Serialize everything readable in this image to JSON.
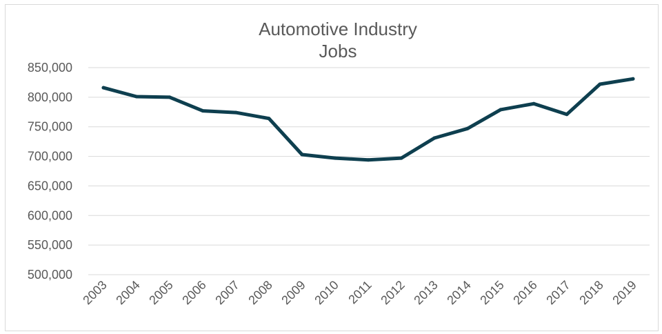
{
  "chart_data": {
    "type": "line",
    "title": [
      "Automotive Industry",
      "Jobs"
    ],
    "xlabel": "",
    "ylabel": "",
    "x": [
      "2003",
      "2004",
      "2005",
      "2006",
      "2007",
      "2008",
      "2009",
      "2010",
      "2011",
      "2012",
      "2013",
      "2014",
      "2015",
      "2016",
      "2017",
      "2018",
      "2019"
    ],
    "series": [
      {
        "values": [
          816000,
          801000,
          800000,
          777000,
          774000,
          764000,
          703000,
          697000,
          694000,
          697000,
          731000,
          747000,
          779000,
          789000,
          771000,
          822000,
          831000
        ]
      }
    ],
    "ylim": [
      500000,
      850000
    ],
    "yticks": [
      "500,000",
      "550,000",
      "600,000",
      "650,000",
      "700,000",
      "750,000",
      "800,000",
      "850,000"
    ],
    "ytick_values": [
      500000,
      550000,
      600000,
      650000,
      700000,
      750000,
      800000,
      850000
    ],
    "grid": true,
    "legend": "none",
    "colors": {
      "series": "#0e3f4f",
      "grid": "#d9d9d9",
      "text": "#595959"
    }
  }
}
